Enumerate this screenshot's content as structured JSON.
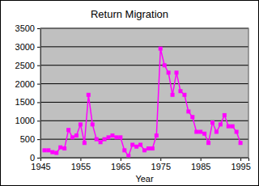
{
  "chart_data": {
    "type": "line",
    "title": "Return Migration",
    "x_label": "Year",
    "x": [
      1946,
      1947,
      1948,
      1949,
      1950,
      1951,
      1952,
      1953,
      1954,
      1955,
      1956,
      1957,
      1958,
      1959,
      1960,
      1961,
      1962,
      1963,
      1964,
      1965,
      1966,
      1967,
      1968,
      1969,
      1970,
      1971,
      1972,
      1973,
      1974,
      1975,
      1976,
      1977,
      1978,
      1979,
      1980,
      1981,
      1982,
      1983,
      1984,
      1985,
      1986,
      1987,
      1988,
      1989,
      1990,
      1991,
      1992,
      1993,
      1994,
      1995
    ],
    "values": [
      200,
      200,
      150,
      130,
      280,
      250,
      750,
      550,
      600,
      900,
      400,
      1700,
      900,
      500,
      420,
      500,
      550,
      600,
      550,
      550,
      200,
      50,
      350,
      300,
      350,
      200,
      250,
      250,
      600,
      2950,
      2500,
      2300,
      1700,
      2300,
      1800,
      1700,
      1250,
      1100,
      700,
      700,
      650,
      400,
      950,
      700,
      900,
      1150,
      850,
      850,
      700,
      400
    ],
    "color": "#ff00ff",
    "marker": "square",
    "xlim": [
      1945,
      1997
    ],
    "xticks": [
      1945,
      1955,
      1965,
      1975,
      1985,
      1995
    ],
    "ylim": [
      0,
      3500
    ],
    "yticks": [
      0,
      500,
      1000,
      1500,
      2000,
      2500,
      3000,
      3500
    ],
    "grid": true
  }
}
